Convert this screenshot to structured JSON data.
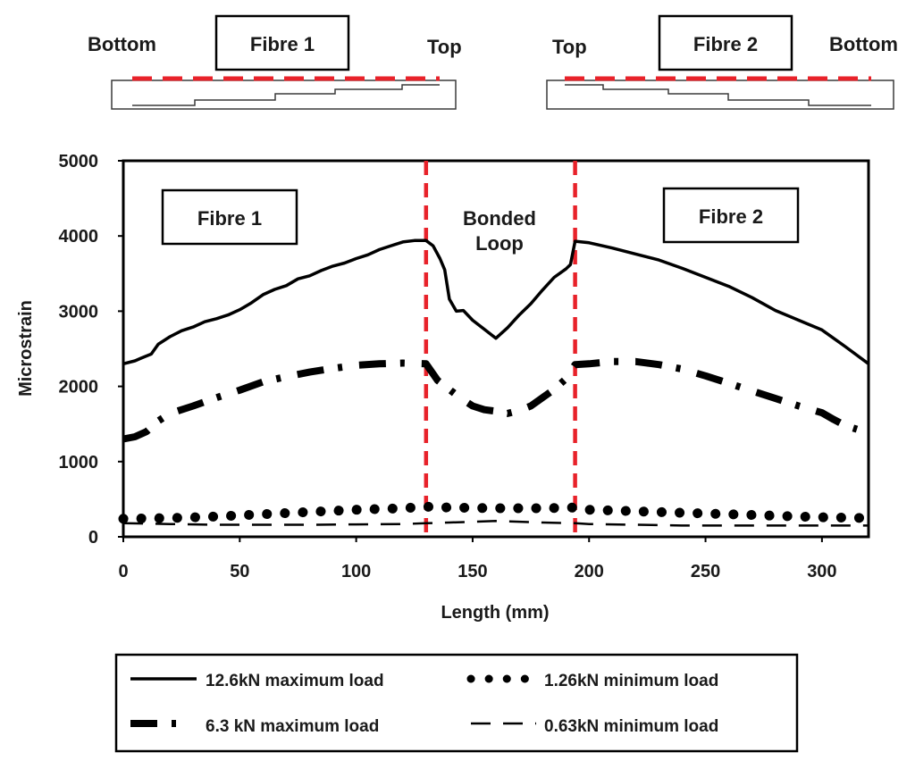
{
  "schematics": [
    {
      "name": "fibre-1",
      "box_label": "Fibre 1",
      "left_label": "Bottom",
      "right_label": "Top"
    },
    {
      "name": "fibre-2",
      "box_label": "Fibre 2",
      "left_label": "Top",
      "right_label": "Bottom"
    }
  ],
  "colors": {
    "fibre_line": "#e8222a",
    "ink": "#000000",
    "schematic_outline": "#3a3a3a"
  },
  "chart_data": {
    "type": "line",
    "title": "",
    "xlabel": "Length (mm)",
    "ylabel": "Microstrain",
    "xlim": [
      0,
      320
    ],
    "ylim": [
      0,
      5000
    ],
    "xticks": [
      0,
      50,
      100,
      150,
      200,
      250,
      300
    ],
    "yticks": [
      0,
      1000,
      2000,
      3000,
      4000,
      5000
    ],
    "grid": false,
    "legend_position": "bottom",
    "region_boundaries": [
      130,
      194
    ],
    "region_labels": [
      "Fibre 1",
      "Bonded Loop",
      "Fibre 2"
    ],
    "series": [
      {
        "name": "12.6kN maximum load",
        "style": "solid",
        "x": [
          0,
          5,
          8,
          12,
          15,
          20,
          25,
          30,
          35,
          40,
          45,
          50,
          55,
          60,
          65,
          70,
          75,
          80,
          85,
          90,
          95,
          100,
          105,
          110,
          115,
          120,
          125,
          130,
          133,
          136,
          138,
          140,
          143,
          146,
          150,
          155,
          160,
          165,
          170,
          175,
          180,
          185,
          190,
          192,
          194,
          200,
          210,
          220,
          230,
          240,
          250,
          260,
          270,
          280,
          290,
          300,
          310,
          320
        ],
        "values": [
          2300,
          2340,
          2380,
          2430,
          2560,
          2660,
          2740,
          2790,
          2860,
          2900,
          2950,
          3020,
          3110,
          3220,
          3290,
          3340,
          3430,
          3470,
          3540,
          3600,
          3640,
          3700,
          3750,
          3820,
          3870,
          3920,
          3940,
          3940,
          3870,
          3700,
          3550,
          3160,
          3000,
          3010,
          2880,
          2760,
          2640,
          2780,
          2950,
          3100,
          3280,
          3450,
          3560,
          3620,
          3930,
          3910,
          3840,
          3760,
          3680,
          3570,
          3450,
          3330,
          3180,
          3010,
          2880,
          2750,
          2530,
          2300
        ]
      },
      {
        "name": "6.3 kN maximum load",
        "style": "dash-dot",
        "x": [
          0,
          5,
          10,
          15,
          20,
          30,
          40,
          50,
          60,
          70,
          80,
          90,
          100,
          110,
          120,
          130,
          135,
          140,
          145,
          150,
          155,
          160,
          165,
          170,
          175,
          180,
          185,
          190,
          194,
          200,
          210,
          220,
          230,
          240,
          250,
          260,
          270,
          280,
          290,
          300,
          305,
          310,
          315
        ],
        "values": [
          1300,
          1330,
          1400,
          1540,
          1640,
          1740,
          1850,
          1950,
          2060,
          2130,
          2190,
          2240,
          2280,
          2300,
          2310,
          2300,
          2080,
          1960,
          1840,
          1740,
          1690,
          1670,
          1640,
          1680,
          1740,
          1850,
          1960,
          2100,
          2290,
          2300,
          2330,
          2330,
          2290,
          2230,
          2140,
          2040,
          1940,
          1840,
          1740,
          1650,
          1560,
          1480,
          1430
        ]
      },
      {
        "name": "1.26kN minimum load",
        "style": "dotted",
        "x": [
          0,
          20,
          40,
          60,
          80,
          100,
          120,
          130,
          140,
          160,
          180,
          194,
          200,
          220,
          240,
          260,
          280,
          300,
          320
        ],
        "values": [
          240,
          250,
          270,
          300,
          330,
          360,
          380,
          400,
          390,
          380,
          380,
          390,
          360,
          340,
          320,
          300,
          280,
          260,
          250
        ]
      },
      {
        "name": "0.63kN minimum load",
        "style": "dashed",
        "x": [
          0,
          20,
          40,
          60,
          80,
          100,
          120,
          130,
          140,
          160,
          180,
          194,
          200,
          220,
          240,
          260,
          280,
          300,
          320
        ],
        "values": [
          180,
          170,
          160,
          160,
          160,
          165,
          170,
          180,
          190,
          210,
          190,
          180,
          170,
          160,
          150,
          150,
          150,
          150,
          150
        ]
      }
    ]
  }
}
